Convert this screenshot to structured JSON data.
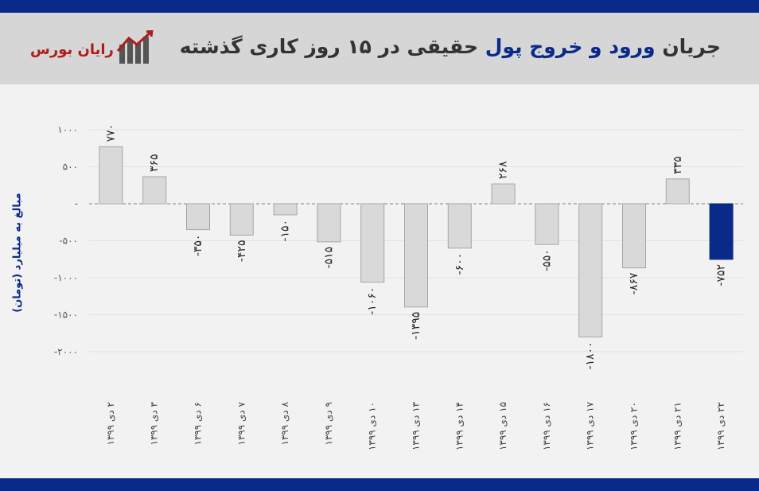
{
  "header": {
    "title_part1": "جریان",
    "title_accent": "ورود و خروج پول",
    "title_part2": "حقیقی در ۱۵ روز کاری گذشته",
    "logo_text": "رایان بورس"
  },
  "colors": {
    "brand_blue": "#0a2a8a",
    "bar_gray": "#d9d9d9",
    "bar_highlight": "#0a2a8a",
    "logo_red": "#b01b1b"
  },
  "chart_data": {
    "type": "bar",
    "ylabel": "مبالغ به میلیارد (تومان)",
    "ylim": [
      -2000,
      1000
    ],
    "ytick_values": [
      1000,
      500,
      0,
      -500,
      -1000,
      -1500,
      -2000
    ],
    "ytick_labels": [
      "۱۰۰۰",
      "۵۰۰",
      "-",
      "-۵۰۰",
      "-۱۰۰۰",
      "-۱۵۰۰",
      "-۲۰۰۰"
    ],
    "grid": true,
    "categories": [
      "۲ دی ۱۳۹۹",
      "۳ دی ۱۳۹۹",
      "۶ دی ۱۳۹۹",
      "۷ دی ۱۳۹۹",
      "۸ دی ۱۳۹۹",
      "۹ دی ۱۳۹۹",
      "۱۰ دی ۱۳۹۹",
      "۱۳ دی ۱۳۹۹",
      "۱۴ دی ۱۳۹۹",
      "۱۵ دی ۱۳۹۹",
      "۱۶ دی ۱۳۹۹",
      "۱۷ دی ۱۳۹۹",
      "۲۰ دی ۱۳۹۹",
      "۲۱ دی ۱۳۹۹",
      "۲۲ دی ۱۳۹۹"
    ],
    "values": [
      770,
      365,
      -350,
      -425,
      -150,
      -515,
      -1060,
      -1395,
      -600,
      268,
      -550,
      -1800,
      -867,
      335,
      -752
    ],
    "value_labels": [
      "۷۷۰",
      "۳۶۵",
      "-۳۵۰",
      "-۴۲۵",
      "-۱۵۰",
      "-۵۱۵",
      "-۱۰۶۰",
      "-۱۳۹۵",
      "-۶۰۰",
      "۲۶۸",
      "-۵۵۰",
      "-۱۸۰۰",
      "-۸۶۷",
      "۳۳۵",
      "-۷۵۲"
    ],
    "highlight_index": 14
  }
}
